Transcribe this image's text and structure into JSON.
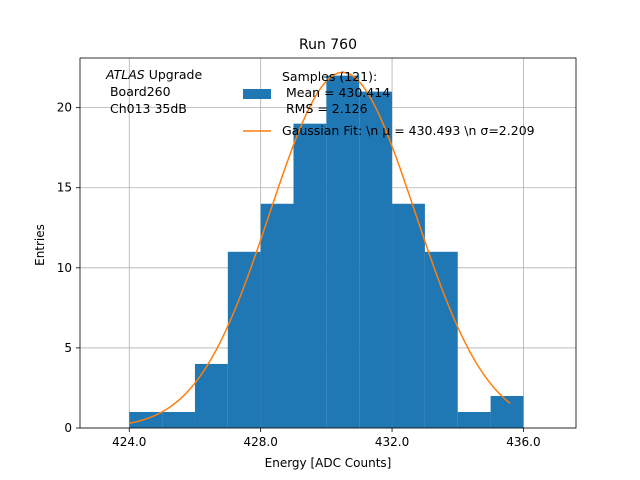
{
  "chart_data": {
    "type": "bar",
    "title": "Run 760",
    "xlabel": "Energy [ADC Counts]",
    "ylabel": "Entries",
    "xlim": [
      422.5,
      437.6
    ],
    "ylim": [
      0,
      23.1
    ],
    "xticks": [
      424.0,
      428.0,
      432.0,
      436.0
    ],
    "xtick_labels": [
      "424.0",
      "428.0",
      "432.0",
      "436.0"
    ],
    "yticks": [
      0,
      5,
      10,
      15,
      20
    ],
    "ytick_labels": [
      "0",
      "5",
      "10",
      "15",
      "20"
    ],
    "grid": true,
    "bar_color": "#1f77b4",
    "fit_color": "#ff7f0e",
    "bins": [
      {
        "x0": 424,
        "x1": 425,
        "count": 1
      },
      {
        "x0": 425,
        "x1": 426,
        "count": 1
      },
      {
        "x0": 426,
        "x1": 427,
        "count": 4
      },
      {
        "x0": 427,
        "x1": 428,
        "count": 11
      },
      {
        "x0": 428,
        "x1": 429,
        "count": 14
      },
      {
        "x0": 429,
        "x1": 430,
        "count": 19
      },
      {
        "x0": 430,
        "x1": 431,
        "count": 22
      },
      {
        "x0": 431,
        "x1": 432,
        "count": 21
      },
      {
        "x0": 432,
        "x1": 433,
        "count": 14
      },
      {
        "x0": 433,
        "x1": 434,
        "count": 11
      },
      {
        "x0": 434,
        "x1": 435,
        "count": 1
      },
      {
        "x0": 435,
        "x1": 436,
        "count": 2
      }
    ],
    "fit": {
      "amplitude": 22.2,
      "mu": 430.493,
      "sigma": 2.209,
      "x_start": 424.0,
      "x_end": 435.6
    },
    "legend": {
      "placement": "upper-right",
      "histogram_lines": [
        "Samples (121):",
        " Mean = 430.414",
        " RMS = 2.126"
      ],
      "fit_label": "Gaussian Fit: \\n μ = 430.493 \\n σ=2.209"
    },
    "annotation": {
      "line1_italic": "ATLAS",
      "line1_rest": " Upgrade",
      "line2": " Board260",
      "line3": " Ch013 35dB"
    }
  }
}
